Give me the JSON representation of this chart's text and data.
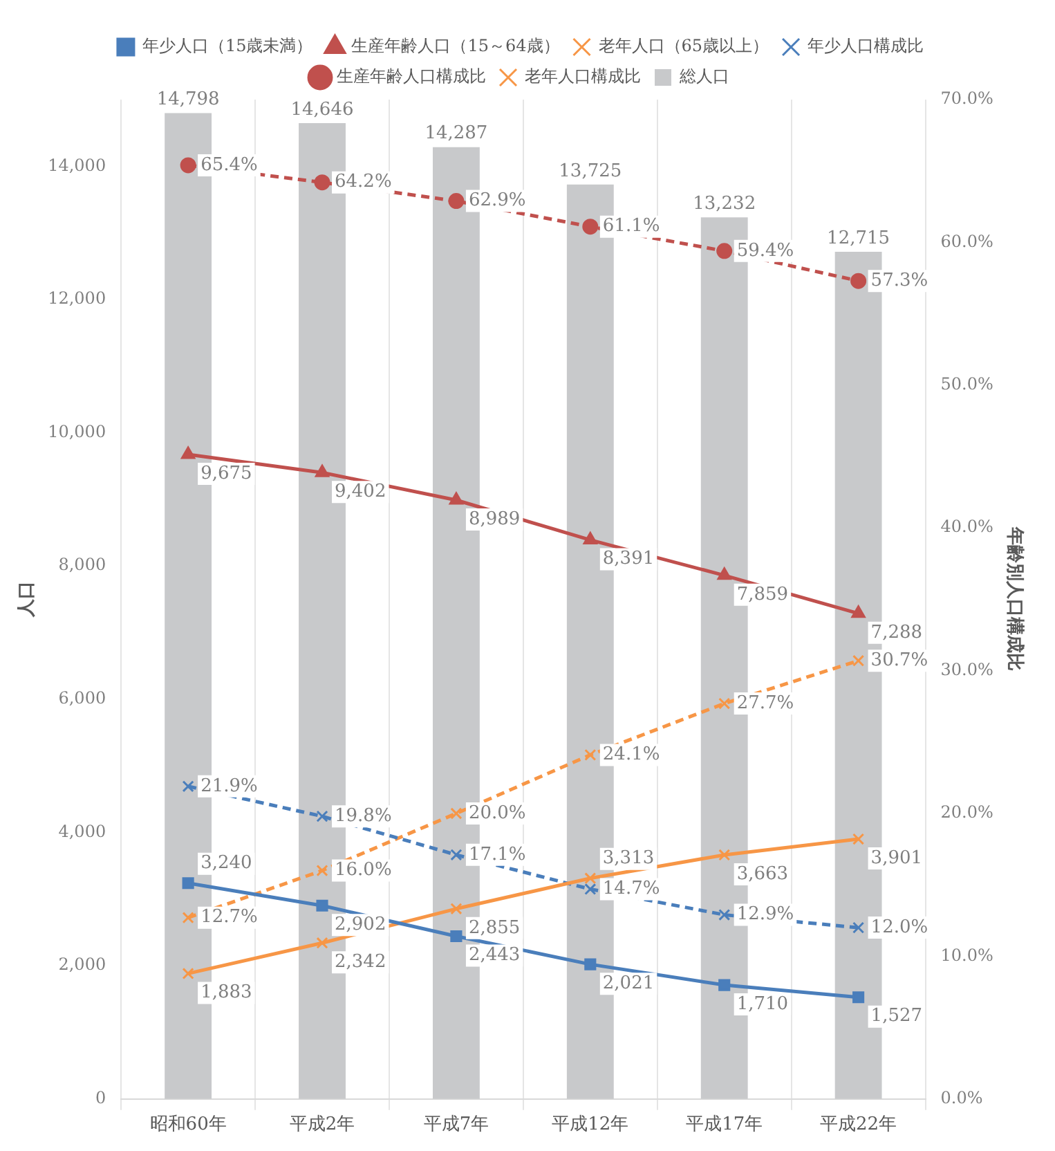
{
  "chart_data": {
    "type": "bar",
    "ylabel": "人口",
    "y2label": "年齢別人口構成比",
    "categories": [
      "昭和60年",
      "平成2年",
      "平成7年",
      "平成12年",
      "平成17年",
      "平成22年"
    ],
    "ylim": [
      0,
      15000
    ],
    "yticks": [
      {
        "value": 0,
        "label": "0"
      },
      {
        "value": 2000,
        "label": "2,000"
      },
      {
        "value": 4000,
        "label": "4,000"
      },
      {
        "value": 6000,
        "label": "6,000"
      },
      {
        "value": 8000,
        "label": "8,000"
      },
      {
        "value": 10000,
        "label": "10,000"
      },
      {
        "value": 12000,
        "label": "12,000"
      },
      {
        "value": 14000,
        "label": "14,000"
      }
    ],
    "y2lim": [
      0,
      70
    ],
    "y2ticks": [
      {
        "value": 0,
        "label": "0.0%"
      },
      {
        "value": 10,
        "label": "10.0%"
      },
      {
        "value": 20,
        "label": "20.0%"
      },
      {
        "value": 30,
        "label": "30.0%"
      },
      {
        "value": 40,
        "label": "40.0%"
      },
      {
        "value": 50,
        "label": "50.0%"
      },
      {
        "value": 60,
        "label": "60.0%"
      },
      {
        "value": 70,
        "label": "70.0%"
      }
    ],
    "grid": "x",
    "legend": "top",
    "series": [
      {
        "name": "総人口",
        "color": "#c8c9cb",
        "values": [
          14798,
          14646,
          14287,
          13725,
          13232,
          12715
        ],
        "value_labels": [
          "14,798",
          "14,646",
          "14,287",
          "13,725",
          "13,232",
          "12,715"
        ]
      },
      {
        "name": "年少人口（15歳未満）",
        "type": "line",
        "color": "#4a7ebb",
        "marker": "square",
        "line_style": "solid",
        "values": [
          3240,
          2902,
          2443,
          2021,
          1710,
          1527
        ],
        "value_labels": [
          "3,240",
          "2,902",
          "2,443",
          "2,021",
          "1,710",
          "1,527"
        ]
      },
      {
        "name": "生産年齢人口（15～64歳）",
        "type": "line",
        "color": "#c0504d",
        "marker": "triangle",
        "line_style": "solid",
        "values": [
          9675,
          9402,
          8989,
          8391,
          7859,
          7288
        ],
        "value_labels": [
          "9,675",
          "9,402",
          "8,989",
          "8,391",
          "7,859",
          "7,288"
        ]
      },
      {
        "name": "老年人口（65歳以上）",
        "type": "line",
        "color": "#f79646",
        "marker": "cross",
        "line_style": "solid",
        "values": [
          1883,
          2342,
          2855,
          3313,
          3663,
          3901
        ],
        "value_labels": [
          "1,883",
          "2,342",
          "2,855",
          "3,313",
          "3,663",
          "3,901"
        ]
      },
      {
        "name": "年少人口構成比",
        "type": "line",
        "axis": "y2",
        "color": "#4a7ebb",
        "marker": "cross",
        "line_style": "dashed",
        "values": [
          21.9,
          19.8,
          17.1,
          14.7,
          12.9,
          12.0
        ],
        "value_labels": [
          "21.9%",
          "19.8%",
          "17.1%",
          "14.7%",
          "12.9%",
          "12.0%"
        ]
      },
      {
        "name": "生産年齢人口構成比",
        "type": "line",
        "axis": "y2",
        "color": "#c0504d",
        "marker": "circle",
        "line_style": "dashed",
        "values": [
          65.4,
          64.2,
          62.9,
          61.1,
          59.4,
          57.3
        ],
        "value_labels": [
          "65.4%",
          "64.2%",
          "62.9%",
          "61.1%",
          "59.4%",
          "57.3%"
        ]
      },
      {
        "name": "老年人口構成比",
        "type": "line",
        "axis": "y2",
        "color": "#f79646",
        "marker": "cross",
        "line_style": "dashed",
        "values": [
          12.7,
          16.0,
          20.0,
          24.1,
          27.7,
          30.7
        ],
        "value_labels": [
          "12.7%",
          "16.0%",
          "20.0%",
          "24.1%",
          "27.7%",
          "30.7%"
        ]
      }
    ]
  }
}
